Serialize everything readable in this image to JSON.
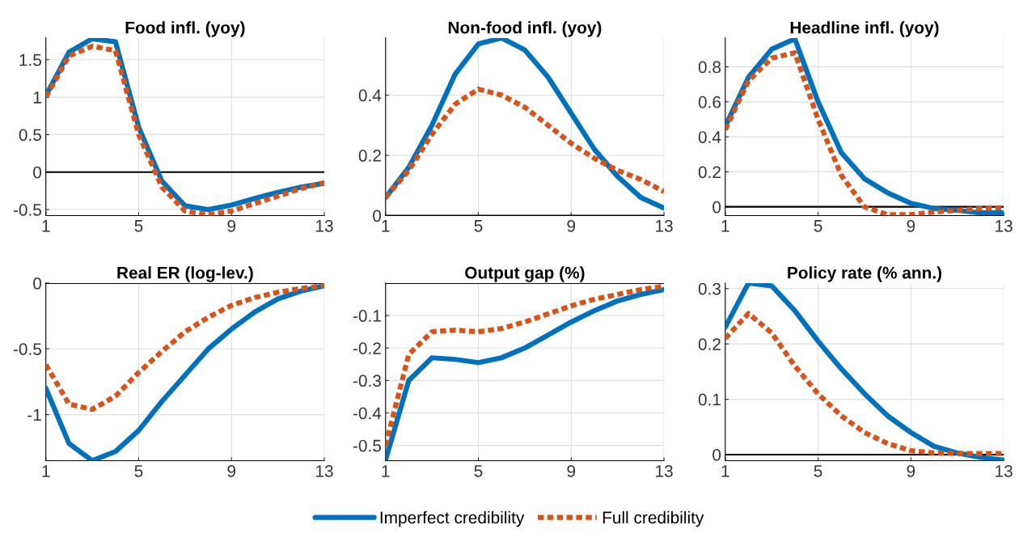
{
  "chart_data": [
    {
      "type": "line",
      "title": "Food infl. (yoy)",
      "x": [
        1,
        2,
        3,
        4,
        5,
        6,
        7,
        8,
        9,
        10,
        11,
        12,
        13
      ],
      "xlim": [
        1,
        13
      ],
      "xticks": [
        1,
        5,
        9,
        13
      ],
      "ylim": [
        -0.58,
        1.79
      ],
      "yticks": [
        -0.5,
        0,
        0.5,
        1,
        1.5
      ],
      "grid": true,
      "legend": "bottom",
      "ref_lines": [
        {
          "axis": "y",
          "value": 0,
          "color": "#000000"
        }
      ],
      "series": [
        {
          "name": "Imperfect credibility",
          "color": "#0072bd",
          "line_style": "solid",
          "values": [
            1.02,
            1.6,
            1.78,
            1.74,
            0.6,
            -0.12,
            -0.45,
            -0.5,
            -0.44,
            -0.35,
            -0.27,
            -0.2,
            -0.15
          ]
        },
        {
          "name": "Full credibility",
          "color": "#d95319",
          "line_style": "dotted",
          "values": [
            1.0,
            1.55,
            1.68,
            1.62,
            0.5,
            -0.2,
            -0.52,
            -0.57,
            -0.52,
            -0.42,
            -0.32,
            -0.22,
            -0.14
          ]
        }
      ]
    },
    {
      "type": "line",
      "title": "Non-food infl. (yoy)",
      "x": [
        1,
        2,
        3,
        4,
        5,
        6,
        7,
        8,
        9,
        10,
        11,
        12,
        13
      ],
      "xlim": [
        1,
        13
      ],
      "xticks": [
        1,
        5,
        9,
        13
      ],
      "ylim": [
        0,
        0.59
      ],
      "yticks": [
        0,
        0.2,
        0.4
      ],
      "grid": true,
      "ref_lines": [
        {
          "axis": "y",
          "value": 0,
          "color": "#000000"
        }
      ],
      "series": [
        {
          "color": "#0072bd",
          "line_style": "solid",
          "values": [
            0.06,
            0.16,
            0.3,
            0.47,
            0.57,
            0.59,
            0.55,
            0.46,
            0.34,
            0.22,
            0.13,
            0.06,
            0.025
          ]
        },
        {
          "color": "#d95319",
          "line_style": "dotted",
          "values": [
            0.06,
            0.15,
            0.27,
            0.37,
            0.42,
            0.4,
            0.36,
            0.3,
            0.24,
            0.19,
            0.15,
            0.12,
            0.08
          ]
        }
      ]
    },
    {
      "type": "line",
      "title": "Headline infl. (yoy)",
      "x": [
        1,
        2,
        3,
        4,
        5,
        6,
        7,
        8,
        9,
        10,
        11,
        12,
        13
      ],
      "xlim": [
        1,
        13
      ],
      "xticks": [
        1,
        5,
        9,
        13
      ],
      "ylim": [
        -0.05,
        0.965
      ],
      "yticks": [
        0,
        0.2,
        0.4,
        0.6,
        0.8
      ],
      "grid": true,
      "ref_lines": [
        {
          "axis": "y",
          "value": 0,
          "color": "#000000"
        }
      ],
      "series": [
        {
          "color": "#0072bd",
          "line_style": "solid",
          "values": [
            0.46,
            0.74,
            0.9,
            0.96,
            0.6,
            0.31,
            0.16,
            0.08,
            0.02,
            -0.01,
            -0.02,
            -0.035,
            -0.035
          ]
        },
        {
          "color": "#d95319",
          "line_style": "dotted",
          "values": [
            0.44,
            0.72,
            0.85,
            0.88,
            0.5,
            0.18,
            0.0,
            -0.045,
            -0.045,
            -0.03,
            -0.02,
            -0.01,
            -0.005
          ]
        }
      ]
    },
    {
      "type": "line",
      "title": "Real ER (log-lev.)",
      "x": [
        1,
        2,
        3,
        4,
        5,
        6,
        7,
        8,
        9,
        10,
        11,
        12,
        13
      ],
      "xlim": [
        1,
        13
      ],
      "xticks": [
        1,
        5,
        9,
        13
      ],
      "ylim": [
        -1.35,
        0
      ],
      "yticks": [
        -1,
        -0.5,
        0
      ],
      "grid": true,
      "ref_lines": [
        {
          "axis": "y",
          "value": 0,
          "color": "#000000"
        }
      ],
      "series": [
        {
          "color": "#0072bd",
          "line_style": "solid",
          "values": [
            -0.8,
            -1.22,
            -1.35,
            -1.28,
            -1.12,
            -0.9,
            -0.7,
            -0.5,
            -0.35,
            -0.22,
            -0.12,
            -0.06,
            -0.02
          ]
        },
        {
          "color": "#d95319",
          "line_style": "dotted",
          "values": [
            -0.62,
            -0.92,
            -0.96,
            -0.86,
            -0.68,
            -0.52,
            -0.37,
            -0.26,
            -0.17,
            -0.11,
            -0.07,
            -0.04,
            -0.02
          ]
        }
      ]
    },
    {
      "type": "line",
      "title": "Output gap (%)",
      "x": [
        1,
        2,
        3,
        4,
        5,
        6,
        7,
        8,
        9,
        10,
        11,
        12,
        13
      ],
      "xlim": [
        1,
        13
      ],
      "xticks": [
        1,
        5,
        9,
        13
      ],
      "ylim": [
        -0.547,
        0
      ],
      "yticks": [
        -0.5,
        -0.4,
        -0.3,
        -0.2,
        -0.1
      ],
      "grid": true,
      "ref_lines": [
        {
          "axis": "y",
          "value": 0,
          "color": "#000000"
        }
      ],
      "series": [
        {
          "color": "#0072bd",
          "line_style": "solid",
          "values": [
            -0.545,
            -0.3,
            -0.23,
            -0.235,
            -0.245,
            -0.23,
            -0.2,
            -0.16,
            -0.12,
            -0.085,
            -0.055,
            -0.035,
            -0.02
          ]
        },
        {
          "color": "#d95319",
          "line_style": "dotted",
          "values": [
            -0.5,
            -0.22,
            -0.15,
            -0.145,
            -0.15,
            -0.14,
            -0.12,
            -0.095,
            -0.07,
            -0.05,
            -0.035,
            -0.02,
            -0.01
          ]
        }
      ]
    },
    {
      "type": "line",
      "title": "Policy rate (% ann.)",
      "x": [
        1,
        2,
        3,
        4,
        5,
        6,
        7,
        8,
        9,
        10,
        11,
        12,
        13
      ],
      "xlim": [
        1,
        13
      ],
      "xticks": [
        1,
        5,
        9,
        13
      ],
      "ylim": [
        -0.011,
        0.31
      ],
      "yticks": [
        0,
        0.1,
        0.2,
        0.3
      ],
      "grid": true,
      "ref_lines": [
        {
          "axis": "y",
          "value": 0,
          "color": "#000000"
        }
      ],
      "series": [
        {
          "color": "#0072bd",
          "line_style": "solid",
          "values": [
            0.23,
            0.31,
            0.305,
            0.26,
            0.205,
            0.155,
            0.11,
            0.07,
            0.04,
            0.015,
            0.003,
            -0.005,
            -0.01
          ]
        },
        {
          "color": "#d95319",
          "line_style": "dotted",
          "values": [
            0.21,
            0.255,
            0.22,
            0.16,
            0.11,
            0.07,
            0.04,
            0.02,
            0.007,
            0.003,
            0.002,
            0.002,
            0.002
          ]
        }
      ]
    }
  ]
}
